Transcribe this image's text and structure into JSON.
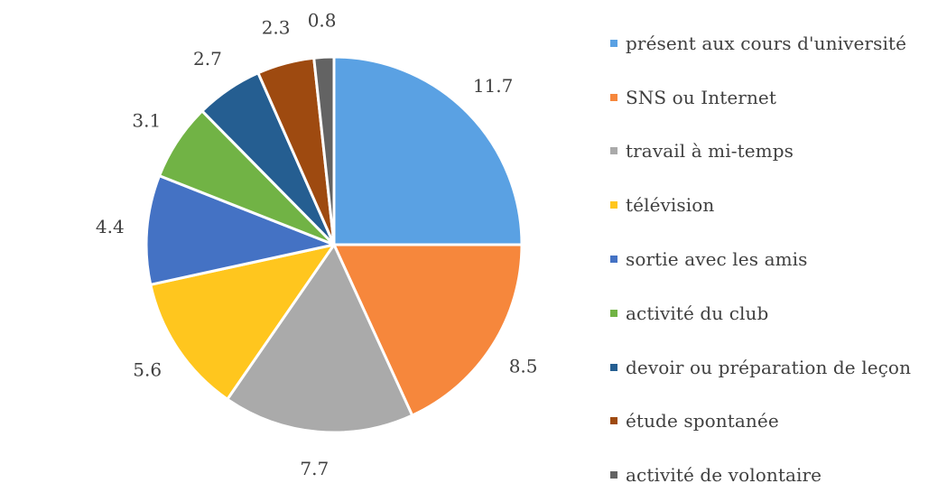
{
  "chart_data": {
    "type": "pie",
    "title": "",
    "categories": [
      "présent aux cours d'université",
      "SNS ou Internet",
      "travail à mi-temps",
      "télévision",
      "sortie avec les amis",
      "activité du club",
      "devoir ou préparation de leçon",
      "étude spontanée",
      "activité de volontaire"
    ],
    "values": [
      11.7,
      8.5,
      7.7,
      5.6,
      4.4,
      3.1,
      2.7,
      2.3,
      0.8
    ],
    "value_labels": [
      "11.7",
      "8.5",
      "7.7",
      "5.6",
      "4.4",
      "3.1",
      "2.7",
      "2.3",
      "0.8"
    ],
    "colors": [
      "#5aa1e3",
      "#f6873c",
      "#aaaaaa",
      "#ffc61e",
      "#4472c4",
      "#71b345",
      "#255e91",
      "#9e4a10",
      "#636363"
    ],
    "start_angle_deg": 0,
    "direction": "clockwise",
    "legend_position": "right"
  }
}
